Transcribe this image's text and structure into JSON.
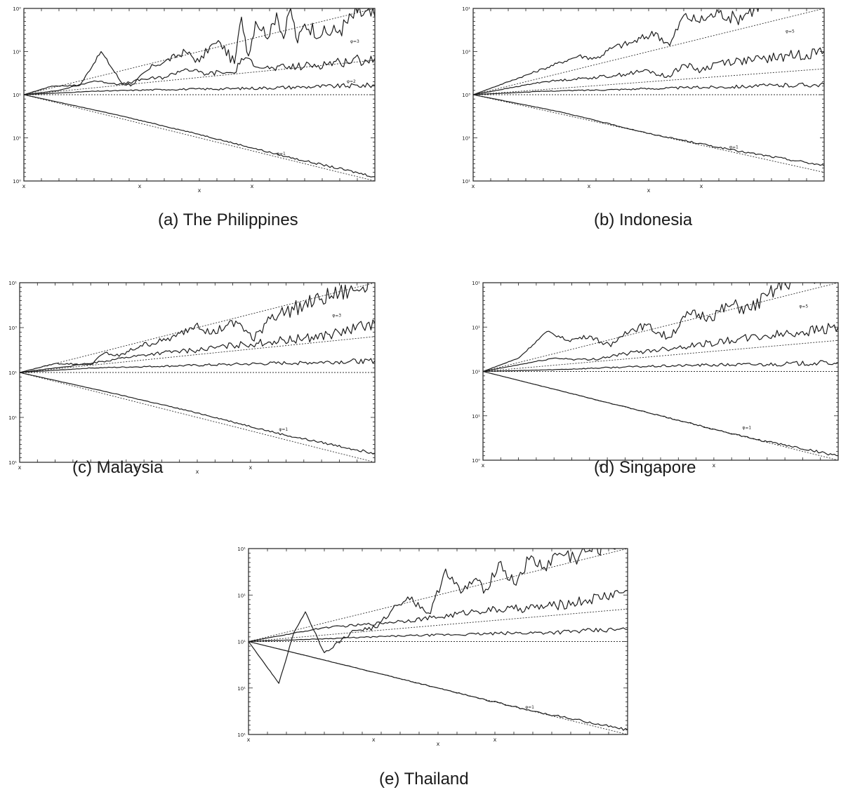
{
  "chart_data": [
    {
      "id": "a",
      "caption": "(a) The Philippines",
      "type": "line",
      "y_ticks": [
        "10⁰",
        "10¹",
        "10¹",
        "10¹",
        "10⁰"
      ],
      "x_ticks": [
        "x",
        "x",
        "x",
        "x"
      ],
      "y_log_range": [
        -1,
        1
      ],
      "reference_lines": [
        {
          "slope": 1.0
        },
        {
          "slope": 0.4
        },
        {
          "slope": 0.0
        },
        {
          "slope": -1.0
        }
      ],
      "series": [
        {
          "label": "",
          "x": [
            0.0,
            0.08,
            0.16,
            0.22,
            0.28,
            0.31,
            0.37,
            0.4,
            0.46,
            0.5,
            0.53,
            0.56,
            0.6,
            0.62,
            0.64,
            0.66,
            0.7,
            0.72,
            0.74,
            0.76,
            0.78,
            0.8,
            0.85,
            0.9,
            0.95,
            1.0
          ],
          "y": [
            0.0,
            0.1,
            0.11,
            0.5,
            0.13,
            0.12,
            0.34,
            0.38,
            0.5,
            0.38,
            0.56,
            0.6,
            0.36,
            0.9,
            0.45,
            0.85,
            0.68,
            0.95,
            0.65,
            1.0,
            0.6,
            0.82,
            0.7,
            0.75,
            0.95,
            0.9
          ]
        },
        {
          "label": "φ=3",
          "x": [
            0.0,
            0.1,
            0.2,
            0.28,
            0.34,
            0.4,
            0.46,
            0.52,
            0.56,
            0.6,
            0.62,
            0.7,
            0.8,
            0.9,
            1.0
          ],
          "y": [
            0.0,
            0.05,
            0.16,
            0.12,
            0.18,
            0.2,
            0.3,
            0.24,
            0.26,
            0.25,
            0.42,
            0.3,
            0.33,
            0.38,
            0.42
          ]
        },
        {
          "label": "φ=2",
          "x": [
            0.0,
            0.2,
            0.4,
            0.6,
            0.8,
            1.0
          ],
          "y": [
            0.0,
            0.04,
            0.06,
            0.07,
            0.09,
            0.11
          ]
        },
        {
          "label": "φ=1",
          "x": [
            0.0,
            0.25,
            0.5,
            0.75,
            1.0
          ],
          "y": [
            0.0,
            -0.22,
            -0.46,
            -0.72,
            -0.95
          ]
        }
      ],
      "annotations": [
        {
          "text": "φ=3",
          "x": 0.93,
          "y": 0.6
        },
        {
          "text": "φ=2",
          "x": 0.92,
          "y": 0.14
        },
        {
          "text": "φ=1",
          "x": 0.72,
          "y": -0.7
        }
      ]
    },
    {
      "id": "b",
      "caption": "(b) Indonesia",
      "type": "line",
      "y_ticks": [
        "10¹",
        "10³",
        "10³",
        "10¹",
        "10¹"
      ],
      "x_ticks": [
        "x",
        "x",
        "x",
        "x"
      ],
      "y_log_range": [
        -1,
        1
      ],
      "reference_lines": [
        {
          "slope": 1.0
        },
        {
          "slope": 0.3
        },
        {
          "slope": 0.0
        },
        {
          "slope": -0.9
        }
      ],
      "series": [
        {
          "label": "φ=5",
          "x": [
            0.0,
            0.1,
            0.2,
            0.3,
            0.35,
            0.4,
            0.45,
            0.52,
            0.56,
            0.6,
            0.64,
            0.7,
            0.75,
            0.8,
            0.85,
            0.9,
            0.95,
            1.0
          ],
          "y": [
            0.0,
            0.15,
            0.3,
            0.45,
            0.42,
            0.55,
            0.6,
            0.72,
            0.57,
            0.92,
            0.85,
            0.95,
            0.88,
            1.0,
            1.1,
            1.2,
            1.25,
            1.3
          ]
        },
        {
          "label": "",
          "x": [
            0.0,
            0.2,
            0.4,
            0.5,
            0.55,
            0.6,
            0.65,
            0.7,
            0.8,
            0.9,
            1.0
          ],
          "y": [
            0.0,
            0.15,
            0.22,
            0.28,
            0.2,
            0.35,
            0.28,
            0.38,
            0.4,
            0.45,
            0.5
          ]
        },
        {
          "label": "",
          "x": [
            0.0,
            0.2,
            0.4,
            0.6,
            0.8,
            1.0
          ],
          "y": [
            0.0,
            0.04,
            0.06,
            0.08,
            0.1,
            0.12
          ]
        },
        {
          "label": "φ=1",
          "x": [
            0.0,
            0.25,
            0.5,
            0.75,
            1.0
          ],
          "y": [
            0.0,
            -0.2,
            -0.45,
            -0.65,
            -0.82
          ]
        }
      ],
      "annotations": [
        {
          "text": "φ=5",
          "x": 0.89,
          "y": 0.72
        },
        {
          "text": "φ=1",
          "x": 0.73,
          "y": -0.62
        }
      ]
    },
    {
      "id": "c",
      "caption": "(c) Malaysia",
      "type": "line",
      "y_ticks": [
        "10¹",
        "10³",
        "10¹",
        "10¹",
        "10¹"
      ],
      "x_ticks": [
        "x",
        "x",
        "x",
        "x"
      ],
      "y_log_range": [
        -1,
        1
      ],
      "reference_lines": [
        {
          "slope": 1.0
        },
        {
          "slope": 0.4
        },
        {
          "slope": 0.0
        },
        {
          "slope": -1.0
        }
      ],
      "series": [
        {
          "label": "",
          "x": [
            0.0,
            0.1,
            0.2,
            0.24,
            0.28,
            0.34,
            0.4,
            0.44,
            0.5,
            0.54,
            0.58,
            0.62,
            0.66,
            0.7,
            0.75,
            0.8,
            0.85,
            0.9,
            0.95,
            1.0
          ],
          "y": [
            0.0,
            0.1,
            0.09,
            0.22,
            0.18,
            0.3,
            0.35,
            0.4,
            0.55,
            0.43,
            0.52,
            0.55,
            0.35,
            0.62,
            0.68,
            0.75,
            0.82,
            0.88,
            0.92,
            1.1
          ]
        },
        {
          "label": "φ=3",
          "x": [
            0.0,
            0.2,
            0.3,
            0.4,
            0.5,
            0.6,
            0.7,
            0.8,
            0.9,
            1.0
          ],
          "y": [
            0.0,
            0.1,
            0.17,
            0.22,
            0.25,
            0.3,
            0.34,
            0.38,
            0.44,
            0.55
          ]
        },
        {
          "label": "",
          "x": [
            0.0,
            0.2,
            0.4,
            0.6,
            0.8,
            1.0
          ],
          "y": [
            0.0,
            0.05,
            0.07,
            0.09,
            0.11,
            0.13
          ]
        },
        {
          "label": "φ=1",
          "x": [
            0.0,
            0.25,
            0.5,
            0.75,
            1.0
          ],
          "y": [
            0.0,
            -0.22,
            -0.45,
            -0.7,
            -0.9
          ]
        }
      ],
      "annotations": [
        {
          "text": "φ=3",
          "x": 0.88,
          "y": 0.62
        },
        {
          "text": "φ=1",
          "x": 0.73,
          "y": -0.65
        }
      ]
    },
    {
      "id": "d",
      "caption": "(d) Singapore",
      "type": "line",
      "y_ticks": [
        "10¹",
        "10¹",
        "10¹",
        "10¹",
        "10⁰"
      ],
      "x_ticks": [
        "x",
        "x",
        "x",
        "x"
      ],
      "y_log_range": [
        -1,
        1
      ],
      "reference_lines": [
        {
          "slope": 1.0
        },
        {
          "slope": 0.35
        },
        {
          "slope": 0.0
        },
        {
          "slope": -1.0
        }
      ],
      "series": [
        {
          "label": "φ=5",
          "x": [
            0.0,
            0.1,
            0.18,
            0.24,
            0.3,
            0.36,
            0.4,
            0.46,
            0.52,
            0.58,
            0.64,
            0.7,
            0.75,
            0.8,
            0.85,
            0.9,
            0.95,
            1.0
          ],
          "y": [
            0.0,
            0.15,
            0.45,
            0.35,
            0.4,
            0.28,
            0.45,
            0.52,
            0.38,
            0.65,
            0.62,
            0.75,
            0.7,
            0.85,
            1.0,
            1.05,
            1.1,
            1.2
          ]
        },
        {
          "label": "",
          "x": [
            0.0,
            0.2,
            0.3,
            0.4,
            0.5,
            0.6,
            0.7,
            0.8,
            0.9,
            1.0
          ],
          "y": [
            0.0,
            0.15,
            0.13,
            0.2,
            0.25,
            0.3,
            0.35,
            0.4,
            0.45,
            0.5
          ]
        },
        {
          "label": "",
          "x": [
            0.0,
            0.2,
            0.4,
            0.6,
            0.8,
            1.0
          ],
          "y": [
            0.0,
            0.02,
            0.05,
            0.07,
            0.08,
            0.1
          ]
        },
        {
          "label": "φ=1",
          "x": [
            0.0,
            0.25,
            0.5,
            0.75,
            1.0
          ],
          "y": [
            0.0,
            -0.25,
            -0.5,
            -0.75,
            -0.95
          ]
        }
      ],
      "annotations": [
        {
          "text": "φ=5",
          "x": 0.89,
          "y": 0.72
        },
        {
          "text": "φ=1",
          "x": 0.73,
          "y": -0.65
        }
      ]
    },
    {
      "id": "e",
      "caption": "(e) Thailand",
      "type": "line",
      "y_ticks": [
        "10¹",
        "10¹",
        "10¹",
        "10¹",
        "10¹"
      ],
      "x_ticks": [
        "x",
        "x",
        "x",
        "x"
      ],
      "y_log_range": [
        -1,
        1
      ],
      "reference_lines": [
        {
          "slope": 1.0
        },
        {
          "slope": 0.35
        },
        {
          "slope": 0.0
        },
        {
          "slope": -1.0
        }
      ],
      "series": [
        {
          "label": "",
          "x": [
            0.0,
            0.08,
            0.12,
            0.15,
            0.2,
            0.28,
            0.34,
            0.38,
            0.42,
            0.48,
            0.52,
            0.56,
            0.6,
            0.62,
            0.66,
            0.7,
            0.74,
            0.78,
            0.82,
            0.86,
            0.9,
            0.95,
            1.0
          ],
          "y": [
            0.0,
            -0.45,
            0.1,
            0.32,
            -0.12,
            0.12,
            0.15,
            0.35,
            0.48,
            0.3,
            0.78,
            0.52,
            0.68,
            0.52,
            0.85,
            0.62,
            0.88,
            0.8,
            0.95,
            0.9,
            0.98,
            1.05,
            1.1
          ]
        },
        {
          "label": "",
          "x": [
            0.0,
            0.2,
            0.3,
            0.4,
            0.5,
            0.6,
            0.7,
            0.8,
            0.9,
            1.0
          ],
          "y": [
            0.0,
            0.15,
            0.18,
            0.22,
            0.26,
            0.33,
            0.35,
            0.38,
            0.45,
            0.55
          ]
        },
        {
          "label": "",
          "x": [
            0.0,
            0.2,
            0.4,
            0.6,
            0.8,
            1.0
          ],
          "y": [
            0.0,
            0.03,
            0.06,
            0.08,
            0.1,
            0.13
          ]
        },
        {
          "label": "φ=1",
          "x": [
            0.0,
            0.25,
            0.5,
            0.75,
            1.0
          ],
          "y": [
            0.0,
            -0.25,
            -0.5,
            -0.75,
            -0.95
          ]
        }
      ],
      "annotations": [
        {
          "text": "φ=1",
          "x": 0.73,
          "y": -0.72
        }
      ]
    }
  ]
}
